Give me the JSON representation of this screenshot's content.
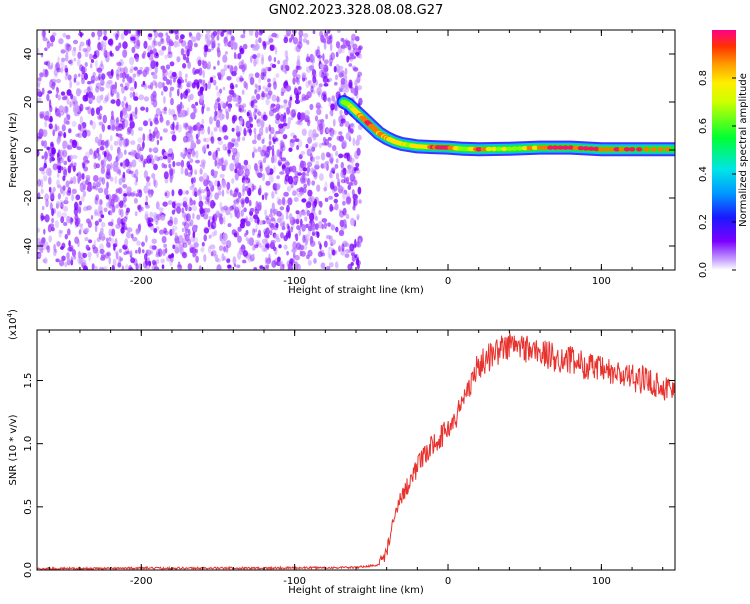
{
  "title": "GN02.2023.328.08.08.G27",
  "colors": {
    "snr_line": "#e8322e",
    "spectrogram_scatter": [
      "#7a00ff",
      "#a64dff",
      "#c99bff"
    ],
    "track": [
      "#0011ff",
      "#00bfff",
      "#00ff33",
      "#ffee00",
      "#ff8800",
      "#ff0066"
    ]
  },
  "chart_data": [
    {
      "type": "heatmap",
      "title": "GN02.2023.328.08.08.G27",
      "xlabel": "Height of straight line (km)",
      "ylabel": "Frequency (Hz)",
      "xlim": [
        -268,
        148
      ],
      "ylim": [
        -50,
        50
      ],
      "xticks": [
        -200,
        -100,
        0,
        100
      ],
      "xtick_labels": [
        "-200",
        "-100",
        "0",
        "100"
      ],
      "yticks": [
        -40,
        -20,
        0,
        20,
        40
      ],
      "ytick_labels": [
        "-40",
        "-20",
        "0",
        "20",
        "40"
      ],
      "colorbar": {
        "label": "Normalized spectral amplitude",
        "range": [
          0,
          1
        ],
        "ticks": [
          0.0,
          0.2,
          0.4,
          0.6,
          0.8
        ],
        "tick_labels": [
          "0.0",
          "0.2",
          "0.4",
          "0.6",
          "0.8"
        ]
      },
      "noise_region_x": [
        -268,
        -57
      ],
      "track": {
        "x": [
          -68,
          -65,
          -60,
          -55,
          -50,
          -45,
          -40,
          -35,
          -30,
          -25,
          -20,
          -10,
          0,
          10,
          20,
          40,
          60,
          80,
          100,
          120,
          148
        ],
        "frequency": [
          20,
          19,
          16,
          13,
          10,
          7,
          5,
          3.5,
          2.5,
          2,
          1.5,
          1.2,
          1,
          0.5,
          0.3,
          0.5,
          1,
          1,
          0.3,
          0.3,
          0.3
        ],
        "amplitude": [
          0.5,
          0.55,
          0.7,
          0.8,
          0.85,
          0.8,
          0.75,
          0.7,
          0.7,
          0.65,
          0.7,
          0.85,
          0.9,
          0.5,
          0.85,
          0.6,
          0.8,
          0.9,
          0.85,
          0.85,
          0.8
        ]
      }
    },
    {
      "type": "line",
      "xlabel": "Height of straight line (km)",
      "ylabel": "SNR (10 * v/v)",
      "multiplier_label": "(x10",
      "multiplier_exp": "4",
      "multiplier_close": ")",
      "xlim": [
        -268,
        148
      ],
      "ylim": [
        0,
        1.9
      ],
      "xticks": [
        -200,
        -100,
        0,
        100
      ],
      "xtick_labels": [
        "-200",
        "-100",
        "0",
        "100"
      ],
      "yticks": [
        0,
        0.5,
        1.0,
        1.5
      ],
      "ytick_labels": [
        "0.0",
        "0.5",
        "1.0",
        "1.5"
      ],
      "series": [
        {
          "x": [
            -268,
            -200,
            -120,
            -60,
            -45,
            -40,
            -35,
            -30,
            -25,
            -20,
            -15,
            -10,
            -5,
            0,
            5,
            10,
            15,
            20,
            30,
            40,
            50,
            60,
            70,
            80,
            90,
            100,
            110,
            120,
            130,
            140,
            148
          ],
          "values": [
            0.01,
            0.015,
            0.015,
            0.02,
            0.04,
            0.15,
            0.4,
            0.6,
            0.7,
            0.82,
            0.9,
            1.0,
            1.05,
            1.12,
            1.2,
            1.35,
            1.5,
            1.62,
            1.72,
            1.78,
            1.76,
            1.72,
            1.68,
            1.66,
            1.62,
            1.58,
            1.55,
            1.52,
            1.5,
            1.45,
            1.42
          ]
        }
      ]
    }
  ]
}
